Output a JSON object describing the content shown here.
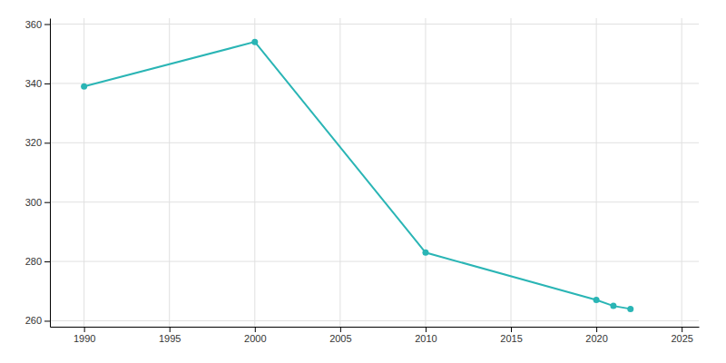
{
  "chart_data": {
    "type": "line",
    "x": [
      1990,
      2000,
      2010,
      2020,
      2021,
      2022
    ],
    "values": [
      339,
      354,
      283,
      267,
      265,
      264
    ],
    "color": "#2ab5b5",
    "marker": "circle",
    "xlim": [
      1988,
      2026
    ],
    "ylim": [
      258,
      362
    ],
    "xticks": [
      1990,
      1995,
      2000,
      2005,
      2010,
      2015,
      2020,
      2025
    ],
    "yticks": [
      260,
      280,
      300,
      320,
      340,
      360
    ],
    "grid": true
  }
}
